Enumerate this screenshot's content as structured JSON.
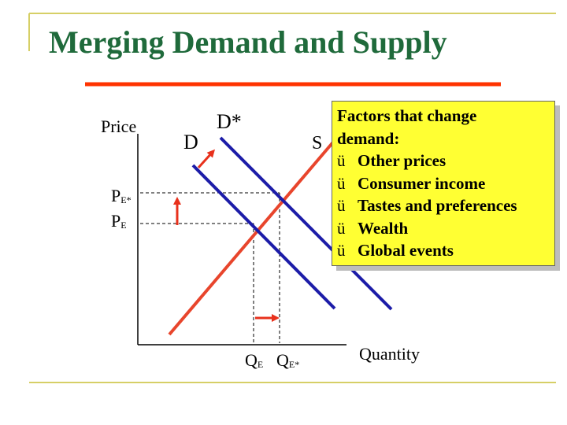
{
  "slide": {
    "title": "Merging Demand and Supply",
    "colors": {
      "title": "#1f6a3b",
      "frame": "#d6cf66",
      "title_rule": "#ff3300",
      "supply_curve": "#e8452c",
      "demand_curve": "#1c1ca8",
      "arrow": "#e8311c",
      "callout_fill": "#ffff33"
    }
  },
  "graph": {
    "y_axis_label": "Price",
    "x_axis_label": "Quantity",
    "demand_label": "D",
    "demand_shifted_label": "D*",
    "supply_label": "S",
    "price_labels": [
      {
        "base": "P",
        "sub": "E*"
      },
      {
        "base": "P",
        "sub": "E"
      }
    ],
    "quantity_labels": [
      {
        "base": "Q",
        "sub": "E"
      },
      {
        "base": "Q",
        "sub": "E*"
      }
    ]
  },
  "callout": {
    "heading_line1": "Factors that change",
    "heading_line2": "demand:",
    "check_glyph": "ü",
    "items": [
      "Other prices",
      "Consumer income",
      "Tastes and preferences",
      "Wealth",
      "Global events"
    ]
  }
}
